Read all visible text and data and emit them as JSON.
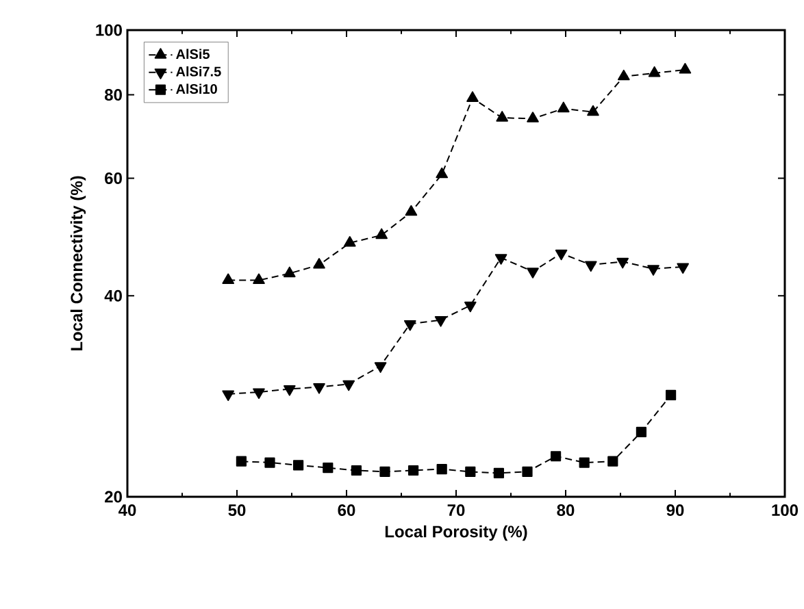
{
  "chart_data": {
    "type": "line",
    "xlabel": "Local Porosity (%)",
    "ylabel": "Local Connectivity (%)",
    "xlim": [
      40,
      100
    ],
    "xticks": [
      40,
      50,
      60,
      70,
      80,
      90,
      100
    ],
    "ylim": [
      20,
      100
    ],
    "yticks": [
      20,
      40,
      60,
      80,
      100
    ],
    "log": "y",
    "grid": false,
    "legend": "top left",
    "line_style": "dashed",
    "series": [
      {
        "name": "AlSi5",
        "color": "#000000",
        "marker": "triangle",
        "x": [
          49.2,
          52.0,
          54.8,
          57.5,
          60.3,
          63.2,
          65.9,
          68.7,
          71.5,
          74.2,
          77.0,
          79.8,
          82.5,
          85.3,
          88.1,
          90.9
        ],
        "values": [
          42.2,
          42.2,
          43.2,
          44.5,
          48.0,
          49.3,
          53.4,
          60.8,
          79.1,
          73.9,
          73.7,
          76.3,
          75.4,
          85.2,
          86.2,
          87.2
        ]
      },
      {
        "name": "AlSi7.5",
        "color": "#000000",
        "marker": "triangle-down",
        "x": [
          49.2,
          52.0,
          54.8,
          57.5,
          60.2,
          63.1,
          65.8,
          68.6,
          71.3,
          74.1,
          77.0,
          79.6,
          82.3,
          85.2,
          88.0,
          90.7
        ],
        "values": [
          28.5,
          28.7,
          29.0,
          29.2,
          29.5,
          31.4,
          36.3,
          36.8,
          38.7,
          45.6,
          43.5,
          46.3,
          44.5,
          45.0,
          43.9,
          44.2
        ]
      },
      {
        "name": "AlSi10",
        "color": "#000000",
        "marker": "square",
        "x": [
          50.4,
          53.0,
          55.6,
          58.3,
          60.9,
          63.5,
          66.1,
          68.7,
          71.3,
          73.9,
          76.5,
          79.1,
          81.7,
          84.3,
          86.9,
          89.6
        ],
        "values": [
          22.6,
          22.5,
          22.3,
          22.1,
          21.9,
          21.8,
          21.9,
          22.0,
          21.8,
          21.7,
          21.8,
          23.0,
          22.5,
          22.6,
          25.0,
          28.4
        ]
      }
    ]
  }
}
